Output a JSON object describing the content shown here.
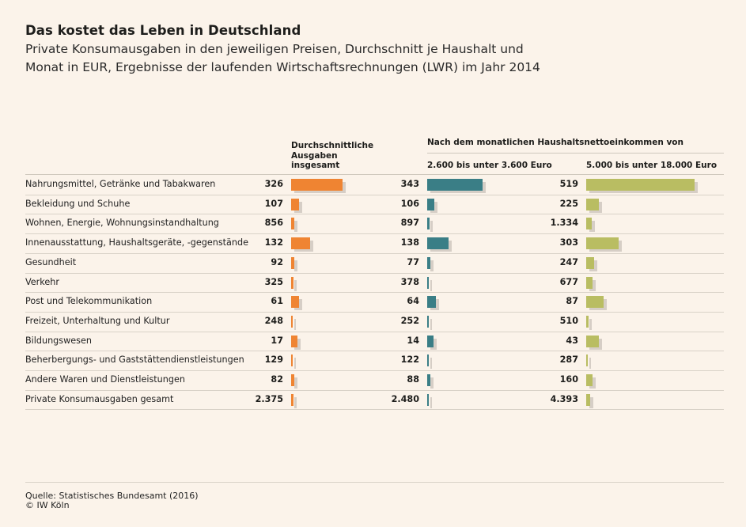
{
  "title": "Das kostet das Leben in Deutschland",
  "subtitle_line1": "Private Konsumausgaben in den jeweiligen Preisen, Durchschnitt je Haushalt und",
  "subtitle_line2": "Monat in EUR, Ergebnisse der laufenden Wirtschaftsrechnungen (LWR) im Jahr 2014",
  "headers": {
    "col1": [
      "Durchschnittliche",
      "Ausgaben",
      "insgesamt"
    ],
    "group": "Nach dem monatlichen Haushaltsnettoeinkommen von",
    "col2": "2.600 bis unter 3.600 Euro",
    "col3": "5.000 bis unter 18.000 Euro"
  },
  "colors": {
    "orange": "#ef8432",
    "teal": "#3a7e86",
    "olive": "#b9bd62",
    "shadow": "#d6cec6"
  },
  "chart_data": {
    "type": "bar",
    "categories": [
      "Nahrungsmittel, Getränke und Tabakwaren",
      "Bekleidung und Schuhe",
      "Wohnen, Energie, Wohnungsinstandhaltung",
      "Innenausstattung, Haushaltsgeräte, -gegenstände",
      "Gesundheit",
      "Verkehr",
      "Post und Telekommunikation",
      "Freizeit, Unterhaltung und Kultur",
      "Bildungswesen",
      "Beherbergungs- und Gaststättendienstleistungen",
      "Andere Waren und Dienstleistungen",
      "Private Konsumausgaben gesamt"
    ],
    "series": [
      {
        "name": "Durchschnittliche Ausgaben insgesamt",
        "values": [
          326,
          107,
          856,
          132,
          92,
          325,
          61,
          248,
          17,
          129,
          82,
          2375
        ],
        "labels": [
          "326",
          "107",
          "856",
          "132",
          "92",
          "325",
          "61",
          "248",
          "17",
          "129",
          "82",
          "2.375"
        ],
        "bar_level": [
          0.88,
          0.14,
          0.05,
          0.33,
          0.06,
          0.04,
          0.13,
          0.03,
          0.11,
          0.01,
          0.05,
          0.04
        ]
      },
      {
        "name": "2.600 bis unter 3.600 Euro",
        "values": [
          343,
          106,
          897,
          138,
          77,
          378,
          64,
          252,
          14,
          122,
          88,
          2480
        ],
        "labels": [
          "343",
          "106",
          "897",
          "138",
          "77",
          "378",
          "64",
          "252",
          "14",
          "122",
          "88",
          "2.480"
        ],
        "bar_level": [
          0.92,
          0.12,
          0.04,
          0.35,
          0.05,
          0.03,
          0.14,
          0.03,
          0.1,
          0.01,
          0.05,
          0.03
        ]
      },
      {
        "name": "5.000 bis unter 18.000 Euro",
        "values": [
          519,
          225,
          1334,
          303,
          247,
          677,
          87,
          510,
          43,
          287,
          160,
          4393
        ],
        "labels": [
          "519",
          "225",
          "1.334",
          "303",
          "247",
          "677",
          "87",
          "510",
          "43",
          "287",
          "160",
          "4.393"
        ],
        "bar_level": [
          1.0,
          0.12,
          0.05,
          0.3,
          0.07,
          0.06,
          0.16,
          0.02,
          0.12,
          0.01,
          0.06,
          0.04
        ]
      }
    ]
  },
  "footer": {
    "source": "Quelle: Statistisches Bundesamt (2016)",
    "copyright": "© IW Köln"
  }
}
